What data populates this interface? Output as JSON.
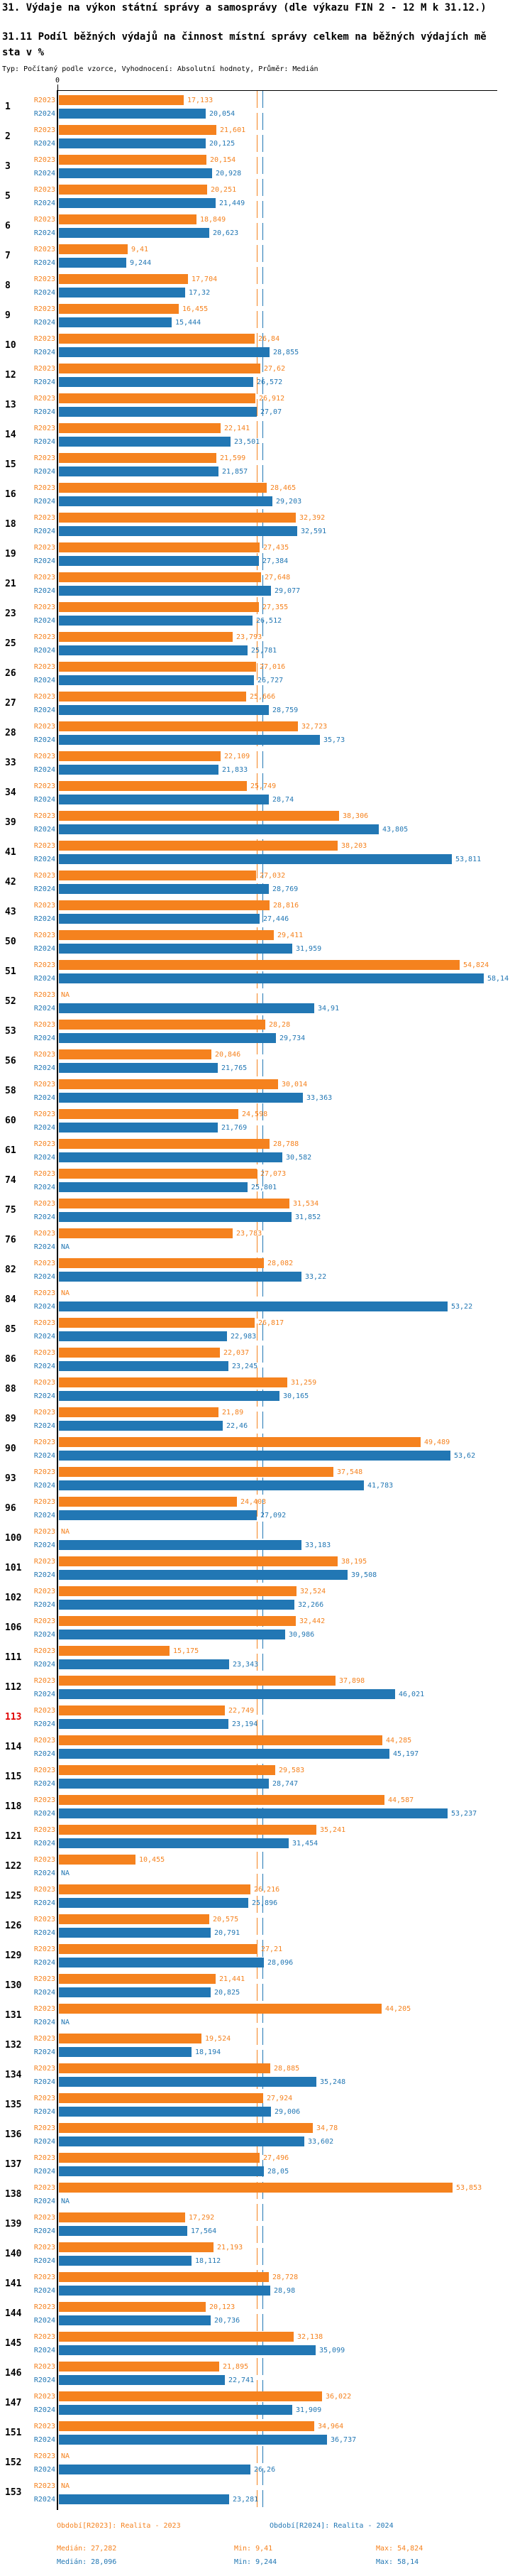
{
  "header": {
    "title": "31. Výdaje na výkon státní správy a samosprávy (dle výkazu FIN 2 - 12 M k 31.12.)",
    "subtitle_line1": "31.11 Podíl běžných výdajů na činnost místní správy celkem na běžných výdajích mě",
    "subtitle_line2": "sta v %",
    "meta": "Typ: Počítaný podle vzorce, Vyhodnocení: Absolutní hodnoty, Průměr: Medián"
  },
  "axis": {
    "zero_label": "0"
  },
  "series_labels": {
    "r2023": "R2023",
    "r2024": "R2024"
  },
  "colors": {
    "r2023": "#f5821e",
    "r2024": "#2277b4",
    "highlight": "#e00000"
  },
  "legend": {
    "period_2023": "Období[R2023]: Realita - 2023",
    "period_2024": "Období[R2024]: Realita - 2024",
    "median_2023": "Medián: 27,282",
    "min_2023": "Min: 9,41",
    "max_2023": "Max: 54,824",
    "median_2024": "Medián: 28,096",
    "min_2024": "Min: 9,244",
    "max_2024": "Max: 58,14"
  },
  "chart_data": {
    "type": "bar",
    "orientation": "horizontal",
    "title": "31.11 Podíl běžných výdajů na činnost místní správy celkem na běžných výdajích města v %",
    "xlabel": "",
    "ylabel": "",
    "xlim": [
      0,
      60
    ],
    "grid": false,
    "legend_position": "bottom",
    "median_2023": 27.282,
    "median_2024": 28.096,
    "min_2023": 9.41,
    "max_2023": 54.824,
    "min_2024": 9.244,
    "max_2024": 58.14,
    "categories": [
      1,
      2,
      3,
      5,
      6,
      7,
      8,
      9,
      10,
      12,
      13,
      14,
      15,
      16,
      18,
      19,
      21,
      23,
      25,
      26,
      27,
      28,
      33,
      34,
      39,
      41,
      42,
      43,
      50,
      51,
      52,
      53,
      56,
      58,
      60,
      61,
      74,
      75,
      76,
      82,
      84,
      85,
      86,
      88,
      89,
      90,
      93,
      96,
      100,
      101,
      102,
      106,
      111,
      112,
      113,
      114,
      115,
      118,
      121,
      122,
      125,
      126,
      129,
      130,
      131,
      132,
      134,
      135,
      136,
      137,
      138,
      139,
      140,
      141,
      144,
      145,
      146,
      147,
      151,
      152,
      153
    ],
    "series": [
      {
        "name": "R2023",
        "values": [
          17.133,
          21.601,
          20.154,
          20.251,
          18.849,
          9.41,
          17.704,
          16.455,
          26.84,
          27.62,
          26.912,
          22.141,
          21.599,
          28.465,
          32.392,
          27.435,
          27.648,
          27.355,
          23.793,
          27.016,
          25.666,
          32.723,
          22.109,
          25.749,
          38.306,
          38.203,
          27.032,
          28.816,
          29.411,
          54.824,
          null,
          28.28,
          20.846,
          30.014,
          24.598,
          28.788,
          27.073,
          31.534,
          23.783,
          28.082,
          null,
          26.817,
          22.037,
          31.259,
          21.89,
          49.489,
          37.548,
          24.403,
          null,
          38.195,
          32.524,
          32.442,
          15.175,
          37.898,
          22.749,
          44.285,
          29.583,
          44.587,
          35.241,
          10.455,
          26.216,
          20.575,
          27.21,
          21.441,
          44.205,
          19.524,
          28.885,
          27.924,
          34.78,
          27.496,
          53.853,
          17.292,
          21.193,
          28.728,
          20.123,
          32.138,
          21.895,
          36.022,
          34.964,
          null,
          null
        ]
      },
      {
        "name": "R2024",
        "values": [
          20.054,
          20.125,
          20.928,
          21.449,
          20.623,
          9.244,
          17.32,
          15.444,
          28.855,
          26.572,
          27.07,
          23.501,
          21.857,
          29.203,
          32.591,
          27.384,
          29.077,
          26.512,
          25.781,
          26.727,
          28.759,
          35.73,
          21.833,
          28.74,
          43.805,
          53.811,
          28.769,
          27.446,
          31.959,
          58.14,
          34.91,
          29.734,
          21.765,
          33.363,
          21.769,
          30.582,
          25.801,
          31.852,
          null,
          33.22,
          53.22,
          22.983,
          23.245,
          30.165,
          22.46,
          53.62,
          41.783,
          27.092,
          33.183,
          39.508,
          32.266,
          30.986,
          23.343,
          46.021,
          23.194,
          45.197,
          28.747,
          53.237,
          31.454,
          null,
          25.896,
          20.791,
          28.096,
          20.825,
          null,
          18.194,
          35.248,
          29.006,
          33.602,
          28.05,
          null,
          17.564,
          18.112,
          28.98,
          20.736,
          35.099,
          22.741,
          31.909,
          36.737,
          26.26,
          23.281
        ]
      }
    ]
  },
  "rows": [
    {
      "n": "1",
      "v2023": "17,133",
      "v2024": "20,054"
    },
    {
      "n": "2",
      "v2023": "21,601",
      "v2024": "20,125"
    },
    {
      "n": "3",
      "v2023": "20,154",
      "v2024": "20,928"
    },
    {
      "n": "5",
      "v2023": "20,251",
      "v2024": "21,449"
    },
    {
      "n": "6",
      "v2023": "18,849",
      "v2024": "20,623"
    },
    {
      "n": "7",
      "v2023": "9,41",
      "v2024": "9,244"
    },
    {
      "n": "8",
      "v2023": "17,704",
      "v2024": "17,32"
    },
    {
      "n": "9",
      "v2023": "16,455",
      "v2024": "15,444"
    },
    {
      "n": "10",
      "v2023": "26,84",
      "v2024": "28,855"
    },
    {
      "n": "12",
      "v2023": "27,62",
      "v2024": "26,572"
    },
    {
      "n": "13",
      "v2023": "26,912",
      "v2024": "27,07"
    },
    {
      "n": "14",
      "v2023": "22,141",
      "v2024": "23,501"
    },
    {
      "n": "15",
      "v2023": "21,599",
      "v2024": "21,857"
    },
    {
      "n": "16",
      "v2023": "28,465",
      "v2024": "29,203"
    },
    {
      "n": "18",
      "v2023": "32,392",
      "v2024": "32,591"
    },
    {
      "n": "19",
      "v2023": "27,435",
      "v2024": "27,384"
    },
    {
      "n": "21",
      "v2023": "27,648",
      "v2024": "29,077"
    },
    {
      "n": "23",
      "v2023": "27,355",
      "v2024": "26,512"
    },
    {
      "n": "25",
      "v2023": "23,793",
      "v2024": "25,781"
    },
    {
      "n": "26",
      "v2023": "27,016",
      "v2024": "26,727"
    },
    {
      "n": "27",
      "v2023": "25,666",
      "v2024": "28,759"
    },
    {
      "n": "28",
      "v2023": "32,723",
      "v2024": "35,73"
    },
    {
      "n": "33",
      "v2023": "22,109",
      "v2024": "21,833"
    },
    {
      "n": "34",
      "v2023": "25,749",
      "v2024": "28,74"
    },
    {
      "n": "39",
      "v2023": "38,306",
      "v2024": "43,805"
    },
    {
      "n": "41",
      "v2023": "38,203",
      "v2024": "53,811"
    },
    {
      "n": "42",
      "v2023": "27,032",
      "v2024": "28,769"
    },
    {
      "n": "43",
      "v2023": "28,816",
      "v2024": "27,446"
    },
    {
      "n": "50",
      "v2023": "29,411",
      "v2024": "31,959"
    },
    {
      "n": "51",
      "v2023": "54,824",
      "v2024": "58,14"
    },
    {
      "n": "52",
      "v2023": "NA",
      "v2024": "34,91"
    },
    {
      "n": "53",
      "v2023": "28,28",
      "v2024": "29,734"
    },
    {
      "n": "56",
      "v2023": "20,846",
      "v2024": "21,765"
    },
    {
      "n": "58",
      "v2023": "30,014",
      "v2024": "33,363"
    },
    {
      "n": "60",
      "v2023": "24,598",
      "v2024": "21,769"
    },
    {
      "n": "61",
      "v2023": "28,788",
      "v2024": "30,582"
    },
    {
      "n": "74",
      "v2023": "27,073",
      "v2024": "25,801"
    },
    {
      "n": "75",
      "v2023": "31,534",
      "v2024": "31,852"
    },
    {
      "n": "76",
      "v2023": "23,783",
      "v2024": "NA"
    },
    {
      "n": "82",
      "v2023": "28,082",
      "v2024": "33,22"
    },
    {
      "n": "84",
      "v2023": "NA",
      "v2024": "53,22"
    },
    {
      "n": "85",
      "v2023": "26,817",
      "v2024": "22,983"
    },
    {
      "n": "86",
      "v2023": "22,037",
      "v2024": "23,245"
    },
    {
      "n": "88",
      "v2023": "31,259",
      "v2024": "30,165"
    },
    {
      "n": "89",
      "v2023": "21,89",
      "v2024": "22,46"
    },
    {
      "n": "90",
      "v2023": "49,489",
      "v2024": "53,62"
    },
    {
      "n": "93",
      "v2023": "37,548",
      "v2024": "41,783"
    },
    {
      "n": "96",
      "v2023": "24,403",
      "v2024": "27,092"
    },
    {
      "n": "100",
      "v2023": "NA",
      "v2024": "33,183"
    },
    {
      "n": "101",
      "v2023": "38,195",
      "v2024": "39,508"
    },
    {
      "n": "102",
      "v2023": "32,524",
      "v2024": "32,266"
    },
    {
      "n": "106",
      "v2023": "32,442",
      "v2024": "30,986"
    },
    {
      "n": "111",
      "v2023": "15,175",
      "v2024": "23,343"
    },
    {
      "n": "112",
      "v2023": "37,898",
      "v2024": "46,021"
    },
    {
      "n": "113",
      "v2023": "22,749",
      "v2024": "23,194",
      "highlight": true
    },
    {
      "n": "114",
      "v2023": "44,285",
      "v2024": "45,197"
    },
    {
      "n": "115",
      "v2023": "29,583",
      "v2024": "28,747"
    },
    {
      "n": "118",
      "v2023": "44,587",
      "v2024": "53,237"
    },
    {
      "n": "121",
      "v2023": "35,241",
      "v2024": "31,454"
    },
    {
      "n": "122",
      "v2023": "10,455",
      "v2024": "NA"
    },
    {
      "n": "125",
      "v2023": "26,216",
      "v2024": "25,896"
    },
    {
      "n": "126",
      "v2023": "20,575",
      "v2024": "20,791"
    },
    {
      "n": "129",
      "v2023": "27,21",
      "v2024": "28,096"
    },
    {
      "n": "130",
      "v2023": "21,441",
      "v2024": "20,825"
    },
    {
      "n": "131",
      "v2023": "44,205",
      "v2024": "NA"
    },
    {
      "n": "132",
      "v2023": "19,524",
      "v2024": "18,194"
    },
    {
      "n": "134",
      "v2023": "28,885",
      "v2024": "35,248"
    },
    {
      "n": "135",
      "v2023": "27,924",
      "v2024": "29,006"
    },
    {
      "n": "136",
      "v2023": "34,78",
      "v2024": "33,602"
    },
    {
      "n": "137",
      "v2023": "27,496",
      "v2024": "28,05"
    },
    {
      "n": "138",
      "v2023": "53,853",
      "v2024": "NA"
    },
    {
      "n": "139",
      "v2023": "17,292",
      "v2024": "17,564"
    },
    {
      "n": "140",
      "v2023": "21,193",
      "v2024": "18,112"
    },
    {
      "n": "141",
      "v2023": "28,728",
      "v2024": "28,98"
    },
    {
      "n": "144",
      "v2023": "20,123",
      "v2024": "20,736"
    },
    {
      "n": "145",
      "v2023": "32,138",
      "v2024": "35,099"
    },
    {
      "n": "146",
      "v2023": "21,895",
      "v2024": "22,741"
    },
    {
      "n": "147",
      "v2023": "36,022",
      "v2024": "31,909"
    },
    {
      "n": "151",
      "v2023": "34,964",
      "v2024": "36,737"
    },
    {
      "n": "152",
      "v2023": "NA",
      "v2024": "26,26"
    },
    {
      "n": "153",
      "v2023": "NA",
      "v2024": "23,281"
    }
  ]
}
